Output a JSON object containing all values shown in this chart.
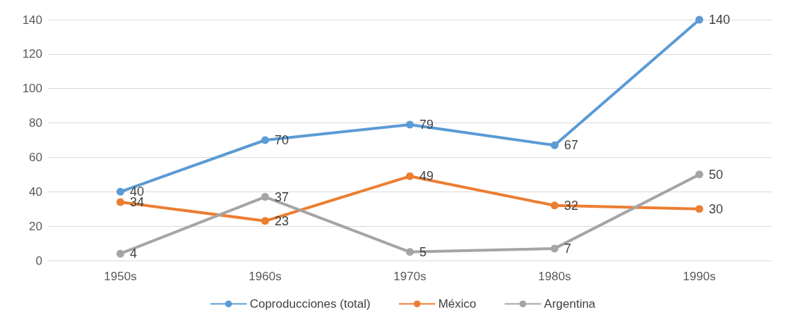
{
  "chart_data": {
    "type": "line",
    "categories": [
      "1950s",
      "1960s",
      "1970s",
      "1980s",
      "1990s"
    ],
    "series": [
      {
        "name": "Coproducciones (total)",
        "color": "#5b9bd5",
        "values": [
          40,
          70,
          79,
          67,
          140
        ]
      },
      {
        "name": "México",
        "color": "#ed7d31",
        "values": [
          34,
          23,
          49,
          32,
          30
        ]
      },
      {
        "name": "Argentina",
        "color": "#a5a5a5",
        "values": [
          4,
          37,
          5,
          7,
          50
        ]
      }
    ],
    "ylim": [
      0,
      140
    ],
    "yticks": [
      0,
      20,
      40,
      60,
      80,
      100,
      120,
      140
    ],
    "grid": "y",
    "legend": "bottom",
    "marker": "circle",
    "line_style": "solid",
    "data_labels": true
  }
}
